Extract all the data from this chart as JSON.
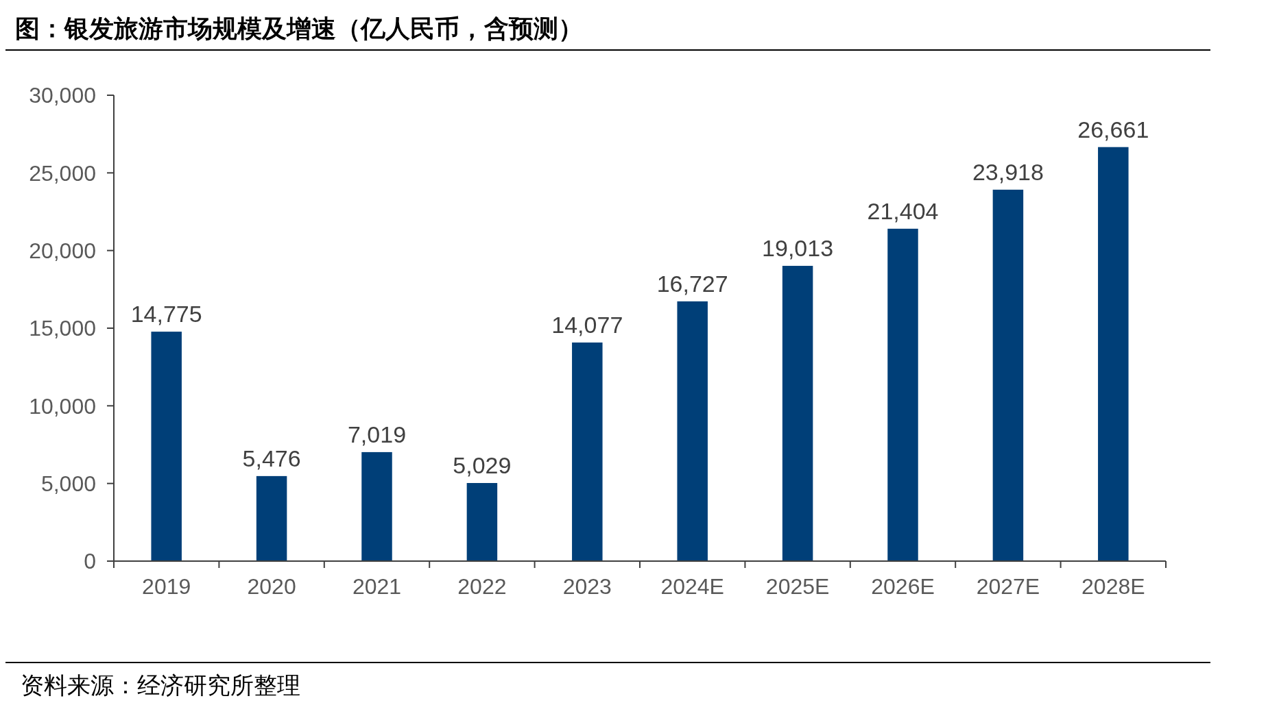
{
  "chart_data": {
    "type": "bar",
    "title": "图：银发旅游市场规模及增速（亿人民币，含预测）",
    "categories": [
      "2019",
      "2020",
      "2021",
      "2022",
      "2023",
      "2024E",
      "2025E",
      "2026E",
      "2027E",
      "2028E"
    ],
    "values": [
      14775,
      5476,
      7019,
      5029,
      14077,
      16727,
      19013,
      21404,
      23918,
      26661
    ],
    "color": "#003f78",
    "ylim": [
      0,
      30000
    ],
    "yticks": [
      {
        "value": 0,
        "label": "0"
      },
      {
        "value": 5000,
        "label": "5,000"
      },
      {
        "value": 10000,
        "label": "10,000"
      },
      {
        "value": 15000,
        "label": "15,000"
      },
      {
        "value": 20000,
        "label": "20,000"
      },
      {
        "value": 25000,
        "label": "25,000"
      },
      {
        "value": 30000,
        "label": "30,000"
      }
    ],
    "value_labels": [
      "14,775",
      "5,476",
      "7,019",
      "5,029",
      "14,077",
      "16,727",
      "19,013",
      "21,404",
      "23,918",
      "26,661"
    ],
    "annotations": [
      "资料来源：经济研究所整理"
    ]
  }
}
